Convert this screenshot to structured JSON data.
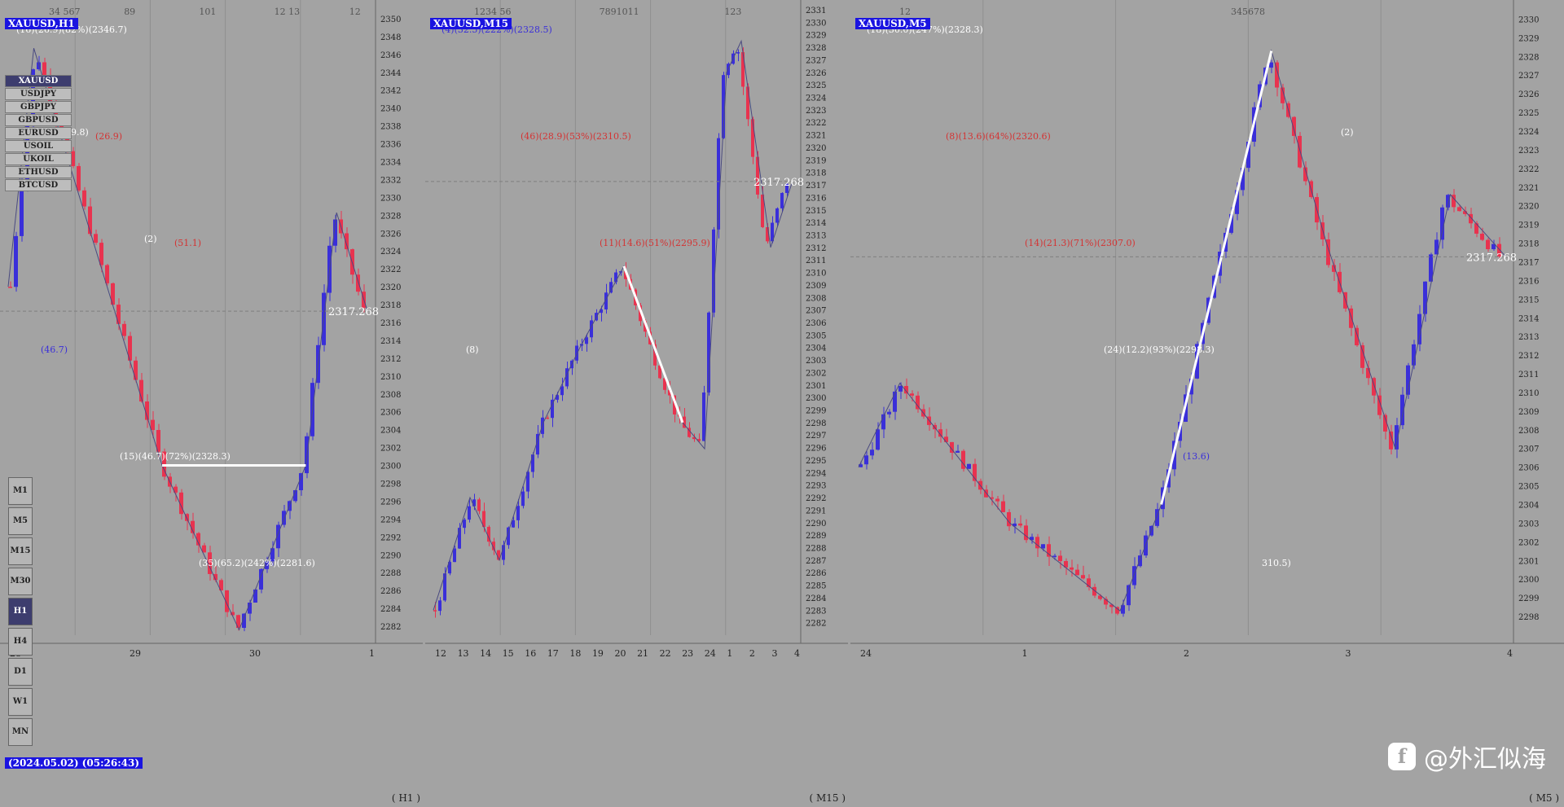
{
  "panels": [
    {
      "id": "h1",
      "tag": "XAUUSD,H1",
      "timeframe_label": "H1",
      "current_price": "2317.268",
      "price_min": 2281,
      "price_max": 2351,
      "price_ticks": [
        "2350",
        "2348",
        "2346",
        "2344",
        "2342",
        "2340",
        "2338",
        "2336",
        "2334",
        "2332",
        "2330",
        "2328",
        "2326",
        "2324",
        "2322",
        "2320",
        "2318",
        "2316",
        "2314",
        "2312",
        "2310",
        "2308",
        "2306",
        "2304",
        "2302",
        "2300",
        "2298",
        "2296",
        "2294",
        "2292",
        "2290",
        "2288",
        "2286",
        "2284",
        "2282"
      ],
      "time_labels": [
        "28",
        "29",
        "30",
        "1"
      ],
      "annotations": [
        "(16)(26.9)(82%)(2346.7)",
        "(26.9)",
        "(51.1)",
        "(46.7)",
        "(15)(46.7)(72%)(2328.3)",
        "(35)(65.2)(242%)(2281.6)",
        "19.8)",
        "(2)"
      ],
      "top_counts": [
        "34  567",
        "89",
        "101",
        "12  13",
        "12"
      ],
      "datetime": "(2024.05.02) (05:26:43)"
    },
    {
      "id": "m15",
      "tag": "XAUUSD,M15",
      "timeframe_label": "M15",
      "current_price": "2317.268",
      "price_min": 2281,
      "price_max": 2331,
      "price_ticks": [
        "2331",
        "2330",
        "2329",
        "2328",
        "2327",
        "2326",
        "2325",
        "2324",
        "2323",
        "2322",
        "2321",
        "2320",
        "2319",
        "2318",
        "2317",
        "2316",
        "2315",
        "2314",
        "2313",
        "2312",
        "2311",
        "2310",
        "2309",
        "2308",
        "2307",
        "2306",
        "2305",
        "2304",
        "2303",
        "2302",
        "2301",
        "2300",
        "2299",
        "2298",
        "2297",
        "2296",
        "2295",
        "2294",
        "2293",
        "2292",
        "2291",
        "2290",
        "2289",
        "2288",
        "2287",
        "2286",
        "2285",
        "2284",
        "2283",
        "2282"
      ],
      "time_labels": [
        "12",
        "13",
        "14",
        "15",
        "16",
        "17",
        "18",
        "19",
        "20",
        "21",
        "22",
        "23",
        "24",
        "1",
        "2",
        "3",
        "4"
      ],
      "annotations": [
        "(4)(32.5)(222%)(2328.5)",
        "(46)(28.9)(53%)(2310.5)",
        "(11)(14.6)(51%)(2295.9)",
        "(8)"
      ],
      "top_counts": [
        "1234  56",
        "7891011",
        "123"
      ]
    },
    {
      "id": "m5",
      "tag": "XAUUSD,M5",
      "timeframe_label": "M5",
      "current_price": "2317.268",
      "price_min": 2297,
      "price_max": 2330.5,
      "price_ticks": [
        "2330",
        "2329",
        "2328",
        "2327",
        "2326",
        "2325",
        "2324",
        "2323",
        "2322",
        "2321",
        "2320",
        "2319",
        "2318",
        "2317",
        "2316",
        "2315",
        "2314",
        "2313",
        "2312",
        "2311",
        "2310",
        "2309",
        "2308",
        "2307",
        "2306",
        "2305",
        "2304",
        "2303",
        "2302",
        "2301",
        "2300",
        "2299",
        "2298"
      ],
      "time_labels": [
        "24",
        "1",
        "2",
        "3",
        "4"
      ],
      "annotations": [
        "(18)(30.0)(247%)(2328.3)",
        "(8)(13.6)(64%)(2320.6)",
        "(14)(21.3)(71%)(2307.0)",
        "(24)(12.2)(93%)(2298.3)",
        "(13.6)",
        "310.5)",
        "(2)"
      ],
      "top_counts": [
        "12",
        "345678"
      ]
    }
  ],
  "symbols": [
    "XAUUSD",
    "USDJPY",
    "GBPJPY",
    "GBPUSD",
    "EURUSD",
    "USOIL",
    "UKOIL",
    "ETHUSD",
    "BTCUSD"
  ],
  "selected_symbol": "XAUUSD",
  "timeframes": [
    "M1",
    "M5",
    "M15",
    "M30",
    "H1",
    "H4",
    "D1",
    "W1",
    "MN"
  ],
  "selected_timeframe": "H1",
  "watermark": "@外汇似海",
  "colors": {
    "bull": "#3a2fd9",
    "bear": "#e8334f",
    "bg": "#a3a3a3",
    "grid": "#8a8a8a",
    "yellow": "#ffee33",
    "white": "#ffffff"
  },
  "chart_data": [
    {
      "type": "candlestick",
      "title": "XAUUSD,H1",
      "ylim": [
        2281,
        2351
      ],
      "path": [
        [
          0,
          2320
        ],
        [
          5,
          2346.7
        ],
        [
          15,
          2328
        ],
        [
          30,
          2300
        ],
        [
          45,
          2281.6
        ],
        [
          58,
          2300
        ],
        [
          64,
          2328.3
        ],
        [
          70,
          2317.3
        ]
      ]
    },
    {
      "type": "candlestick",
      "title": "XAUUSD,M15",
      "ylim": [
        2281,
        2331
      ],
      "path": [
        [
          0,
          2283
        ],
        [
          10,
          2292
        ],
        [
          18,
          2287
        ],
        [
          30,
          2298
        ],
        [
          40,
          2304
        ],
        [
          52,
          2310.5
        ],
        [
          60,
          2304
        ],
        [
          68,
          2298
        ],
        [
          74,
          2295.9
        ],
        [
          80,
          2326
        ],
        [
          84,
          2328.5
        ],
        [
          92,
          2312
        ],
        [
          98,
          2317.3
        ]
      ]
    },
    {
      "type": "candlestick",
      "title": "XAUUSD,M5",
      "ylim": [
        2297,
        2330.5
      ],
      "path": [
        [
          0,
          2306
        ],
        [
          6,
          2310.5
        ],
        [
          22,
          2303
        ],
        [
          38,
          2298.3
        ],
        [
          44,
          2304
        ],
        [
          56,
          2322
        ],
        [
          60,
          2328.3
        ],
        [
          68,
          2318
        ],
        [
          78,
          2307
        ],
        [
          86,
          2320.6
        ],
        [
          94,
          2317.3
        ]
      ]
    }
  ]
}
